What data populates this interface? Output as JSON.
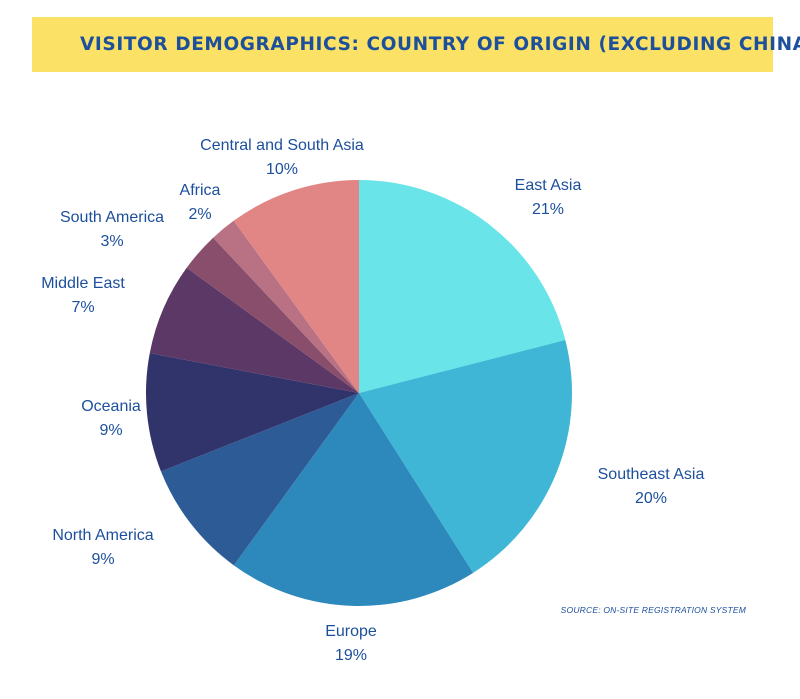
{
  "header": {
    "title": "VISITOR DEMOGRAPHICS: COUNTRY OF ORIGIN (EXCLUDING CHINA)"
  },
  "source": "SOURCE: ON-SITE REGISTRATION SYSTEM",
  "colors": {
    "banner": "#fbe165",
    "text": "#1c4f9c"
  },
  "chart_data": {
    "type": "pie",
    "title": "VISITOR DEMOGRAPHICS: COUNTRY OF ORIGIN (EXCLUDING CHINA)",
    "unit": "%",
    "slices": [
      {
        "label": "East Asia",
        "value": 21,
        "display": "21%",
        "color": "#69e4e8"
      },
      {
        "label": "Southeast Asia",
        "value": 20,
        "display": "20%",
        "color": "#40b6d6"
      },
      {
        "label": "Europe",
        "value": 19,
        "display": "19%",
        "color": "#2d89bb"
      },
      {
        "label": "North America",
        "value": 9,
        "display": "9%",
        "color": "#2d5b96"
      },
      {
        "label": "Oceania",
        "value": 9,
        "display": "9%",
        "color": "#31336b"
      },
      {
        "label": "Middle East",
        "value": 7,
        "display": "7%",
        "color": "#5c3866"
      },
      {
        "label": "South America",
        "value": 3,
        "display": "3%",
        "color": "#8a4e6d"
      },
      {
        "label": "Africa",
        "value": 2,
        "display": "2%",
        "color": "#b87284"
      },
      {
        "label": "Central and South Asia",
        "value": 10,
        "display": "10%",
        "color": "#e28585"
      }
    ]
  }
}
